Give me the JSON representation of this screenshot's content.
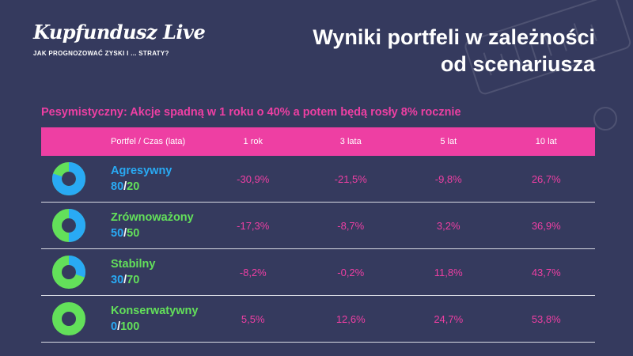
{
  "brand": {
    "logo": "Kupfundusz Live",
    "tagline": "JAK PROGNOZOWAĆ ZYSKI I ... STRATY?"
  },
  "title": {
    "line1": "Wyniki portfeli w zależności",
    "line2": "od scenariusza"
  },
  "scenario": "Pesymistyczny: Akcje spadną w 1 roku o 40% a potem będą rosły 8% rocznie",
  "colors": {
    "accent": "#ee3fa3",
    "stocks": "#29aaf4",
    "bonds": "#63e05a",
    "background": "#353a5e"
  },
  "chart_data": {
    "type": "table",
    "columns": [
      "Portfel / Czas (lata)",
      "1 rok",
      "3 lata",
      "5 lat",
      "10 lat"
    ],
    "rows": [
      {
        "name": "Agresywny",
        "stocks": "80",
        "bonds": "20",
        "name_color": "#29aaf4",
        "values": [
          "-30,9%",
          "-21,5%",
          "-9,8%",
          "26,7%"
        ]
      },
      {
        "name": "Zrównoważony",
        "stocks": "50",
        "bonds": "50",
        "name_color": "#63e05a",
        "values": [
          "-17,3%",
          "-8,7%",
          "3,2%",
          "36,9%"
        ]
      },
      {
        "name": "Stabilny",
        "stocks": "30",
        "bonds": "70",
        "name_color": "#63e05a",
        "values": [
          "-8,2%",
          "-0,2%",
          "11,8%",
          "43,7%"
        ]
      },
      {
        "name": "Konserwatywny",
        "stocks": "0",
        "bonds": "100",
        "name_color": "#63e05a",
        "values": [
          "5,5%",
          "12,6%",
          "24,7%",
          "53,8%"
        ]
      }
    ]
  }
}
